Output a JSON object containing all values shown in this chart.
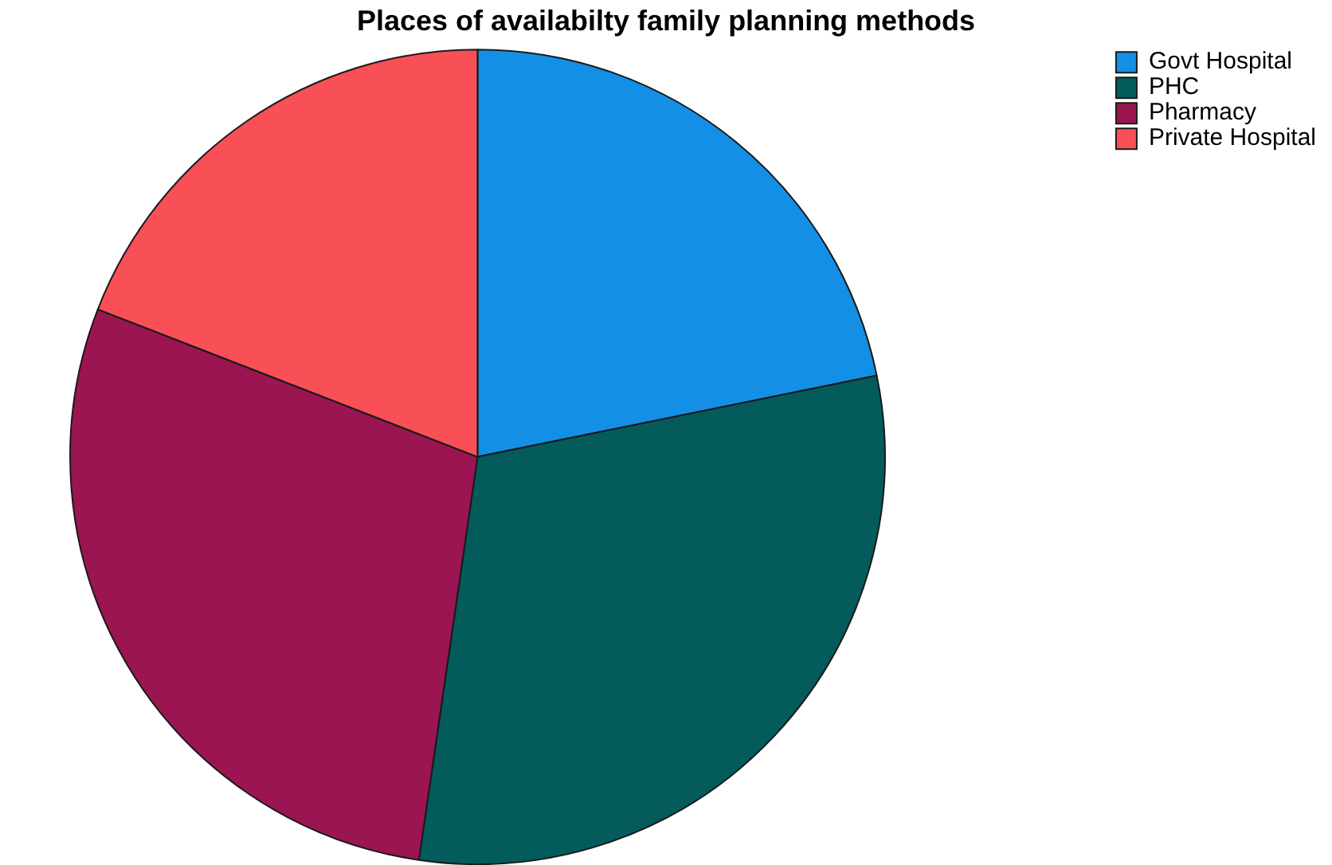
{
  "chart_data": {
    "type": "pie",
    "title": "Places of availabilty family planning methods",
    "categories": [
      "Govt Hospital",
      "PHC",
      "Pharmacy",
      "Private Hospital"
    ],
    "values": [
      21.8,
      30.5,
      28.6,
      19.1
    ],
    "colors": [
      "#148fe6",
      "#035c5b",
      "#9b1552",
      "#f94f56"
    ],
    "legend": "top right"
  }
}
